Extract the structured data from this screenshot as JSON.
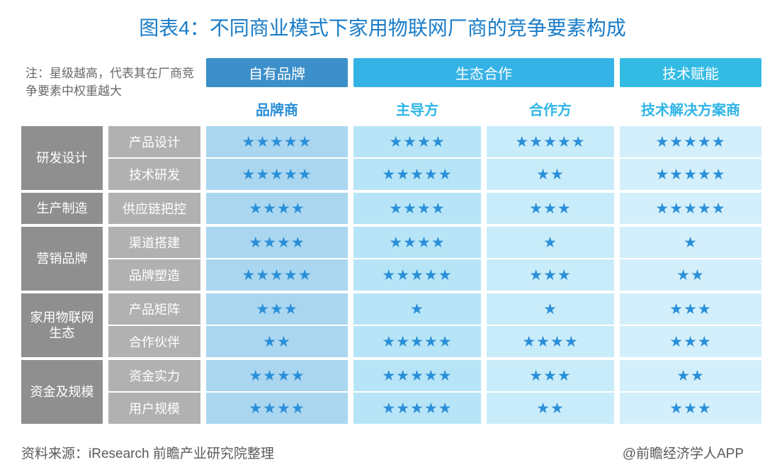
{
  "title": "图表4：不同商业模式下家用物联网厂商的竞争要素构成",
  "note": "注：星级越高，代表其在厂商竞争要素中权重越大",
  "colors": {
    "title": "#1a7cc7",
    "star": "#2a8fd8",
    "cat_label_bg": "#8f8f8f",
    "sub_label_bg": "#b1b1b1",
    "note_text": "#6a6a6a"
  },
  "columns": {
    "brand": {
      "top": "自有品牌",
      "top_bg": "#3d8fc9",
      "sub": "品牌商",
      "sub_color": "#2a8fd8",
      "cell_bg": "#aad6f0"
    },
    "eco": {
      "top": "生态合作",
      "top_bg": "#36b3e6"
    },
    "eco_lead": {
      "sub": "主导方",
      "sub_color": "#2fb5e6",
      "cell_bg": "#b7e5f7"
    },
    "eco_coop": {
      "sub": "合作方",
      "sub_color": "#2fb5e6",
      "cell_bg": "#c9ecfa"
    },
    "tech": {
      "top": "技术赋能",
      "top_bg": "#34bbe4",
      "sub": "技术解决方案商",
      "sub_color": "#2fb5e6",
      "cell_bg": "#d3effb"
    }
  },
  "categories": [
    {
      "name": "研发设计",
      "subrows": [
        {
          "name": "产品设计",
          "stars": [
            5,
            4,
            5,
            5
          ]
        },
        {
          "name": "技术研发",
          "stars": [
            5,
            5,
            2,
            5
          ]
        }
      ]
    },
    {
      "name": "生产制造",
      "subrows": [
        {
          "name": "供应链把控",
          "stars": [
            4,
            4,
            3,
            5
          ]
        }
      ]
    },
    {
      "name": "营销品牌",
      "subrows": [
        {
          "name": "渠道搭建",
          "stars": [
            4,
            4,
            1,
            1
          ]
        },
        {
          "name": "品牌塑造",
          "stars": [
            5,
            5,
            3,
            2
          ]
        }
      ]
    },
    {
      "name": "家用物联网生态",
      "subrows": [
        {
          "name": "产品矩阵",
          "stars": [
            3,
            1,
            1,
            3
          ]
        },
        {
          "name": "合作伙伴",
          "stars": [
            2,
            5,
            4,
            3
          ]
        }
      ]
    },
    {
      "name": "资金及规模",
      "subrows": [
        {
          "name": "资金实力",
          "stars": [
            4,
            5,
            3,
            2
          ]
        },
        {
          "name": "用户规模",
          "stars": [
            4,
            5,
            2,
            3
          ]
        }
      ]
    }
  ],
  "footer": {
    "left": "资料来源：iResearch 前瞻产业研究院整理",
    "right": "@前瞻经济学人APP"
  }
}
